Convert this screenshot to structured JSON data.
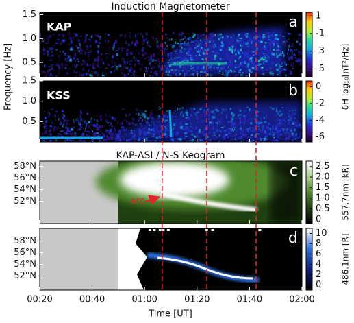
{
  "chart_data": [
    {
      "type": "spectrogram",
      "title": "Induction Magnetometer",
      "station": "KAP",
      "panel_label": "a",
      "ylabel": "Frequency [Hz]",
      "ylim": [
        0.2,
        1.55
      ],
      "yticks": [
        0.5,
        {
          "value": 1.0,
          "label": "1.0"
        },
        1.5
      ],
      "colorbar": {
        "label": "δH log₁₀[nT²/Hz]",
        "lim": [
          -5.9,
          1.4
        ],
        "ticks": [
          1,
          -1,
          -3,
          -5
        ],
        "colors": [
          "#14001f",
          "#3b0f8c",
          "#2233dd",
          "#10a8e8",
          "#20e0a0",
          "#b8f020",
          "#ffd000",
          "#ff2000"
        ]
      },
      "vlines": [
        66.7,
        83.7,
        102.5
      ],
      "vline_color": "#e8202a"
    },
    {
      "type": "spectrogram",
      "station": "KSS",
      "panel_label": "b",
      "ylim": [
        0,
        1.5
      ],
      "yticks": [
        0.5,
        {
          "value": 1.0,
          "label": "1.0"
        },
        1.5
      ],
      "colorbar": {
        "lim": [
          -6.6,
          0.7
        ],
        "ticks": [
          0,
          -2,
          -4,
          -6
        ],
        "colors": [
          "#14001f",
          "#3b0f8c",
          "#2233dd",
          "#10a8e8",
          "#20e0a0",
          "#b8f020",
          "#ffd000",
          "#ff2000"
        ]
      }
    },
    {
      "type": "keogram",
      "title": "KAP-ASI / N-S Keogram",
      "panel_label": "c",
      "ylim": [
        48.2,
        58.9
      ],
      "yticks": [
        {
          "value": 58,
          "label": "58°N"
        },
        {
          "value": 56,
          "label": "56°N"
        },
        {
          "value": 54,
          "label": "54°N"
        },
        {
          "value": 52,
          "label": "52°N"
        }
      ],
      "coverage_start": 50,
      "annotation": "arc",
      "colorbar": {
        "label": "557.7nm [kR]",
        "lim": [
          -0.2,
          2.75
        ],
        "ticks": [
          2.5,
          {
            "value": 2.0,
            "label": "2.0"
          },
          1.5,
          {
            "value": 1.0,
            "label": "1.0"
          },
          0.5,
          0
        ],
        "colors": [
          "#000000",
          "#1f4010",
          "#4f8a2e",
          "#a8d48c",
          "#ffffff"
        ]
      }
    },
    {
      "type": "keogram",
      "panel_label": "d",
      "ylim": [
        49.6,
        60.2
      ],
      "yticks": [
        {
          "value": 58,
          "label": "58°N"
        },
        {
          "value": 56,
          "label": "56°N"
        },
        {
          "value": 54,
          "label": "54°N"
        },
        {
          "value": 52,
          "label": "52°N"
        }
      ],
      "coverage_start": 50,
      "colorbar": {
        "label": "486.1nm [R]",
        "lim": [
          -1,
          11
        ],
        "ticks": [
          10,
          8,
          6,
          4,
          2,
          0
        ],
        "colors": [
          "#000000",
          "#0a1e7a",
          "#2f6ee0",
          "#ffffff"
        ]
      },
      "xlabel": "Time [UT]",
      "xlim": [
        20,
        120
      ],
      "xticks": [
        {
          "value": 20,
          "label": "00:20"
        },
        {
          "value": 40,
          "label": "00:40"
        },
        {
          "value": 60,
          "label": "01:00"
        },
        {
          "value": 80,
          "label": "01:20"
        },
        {
          "value": 100,
          "label": "01:40"
        },
        {
          "value": 120,
          "label": "02:00"
        }
      ]
    }
  ]
}
